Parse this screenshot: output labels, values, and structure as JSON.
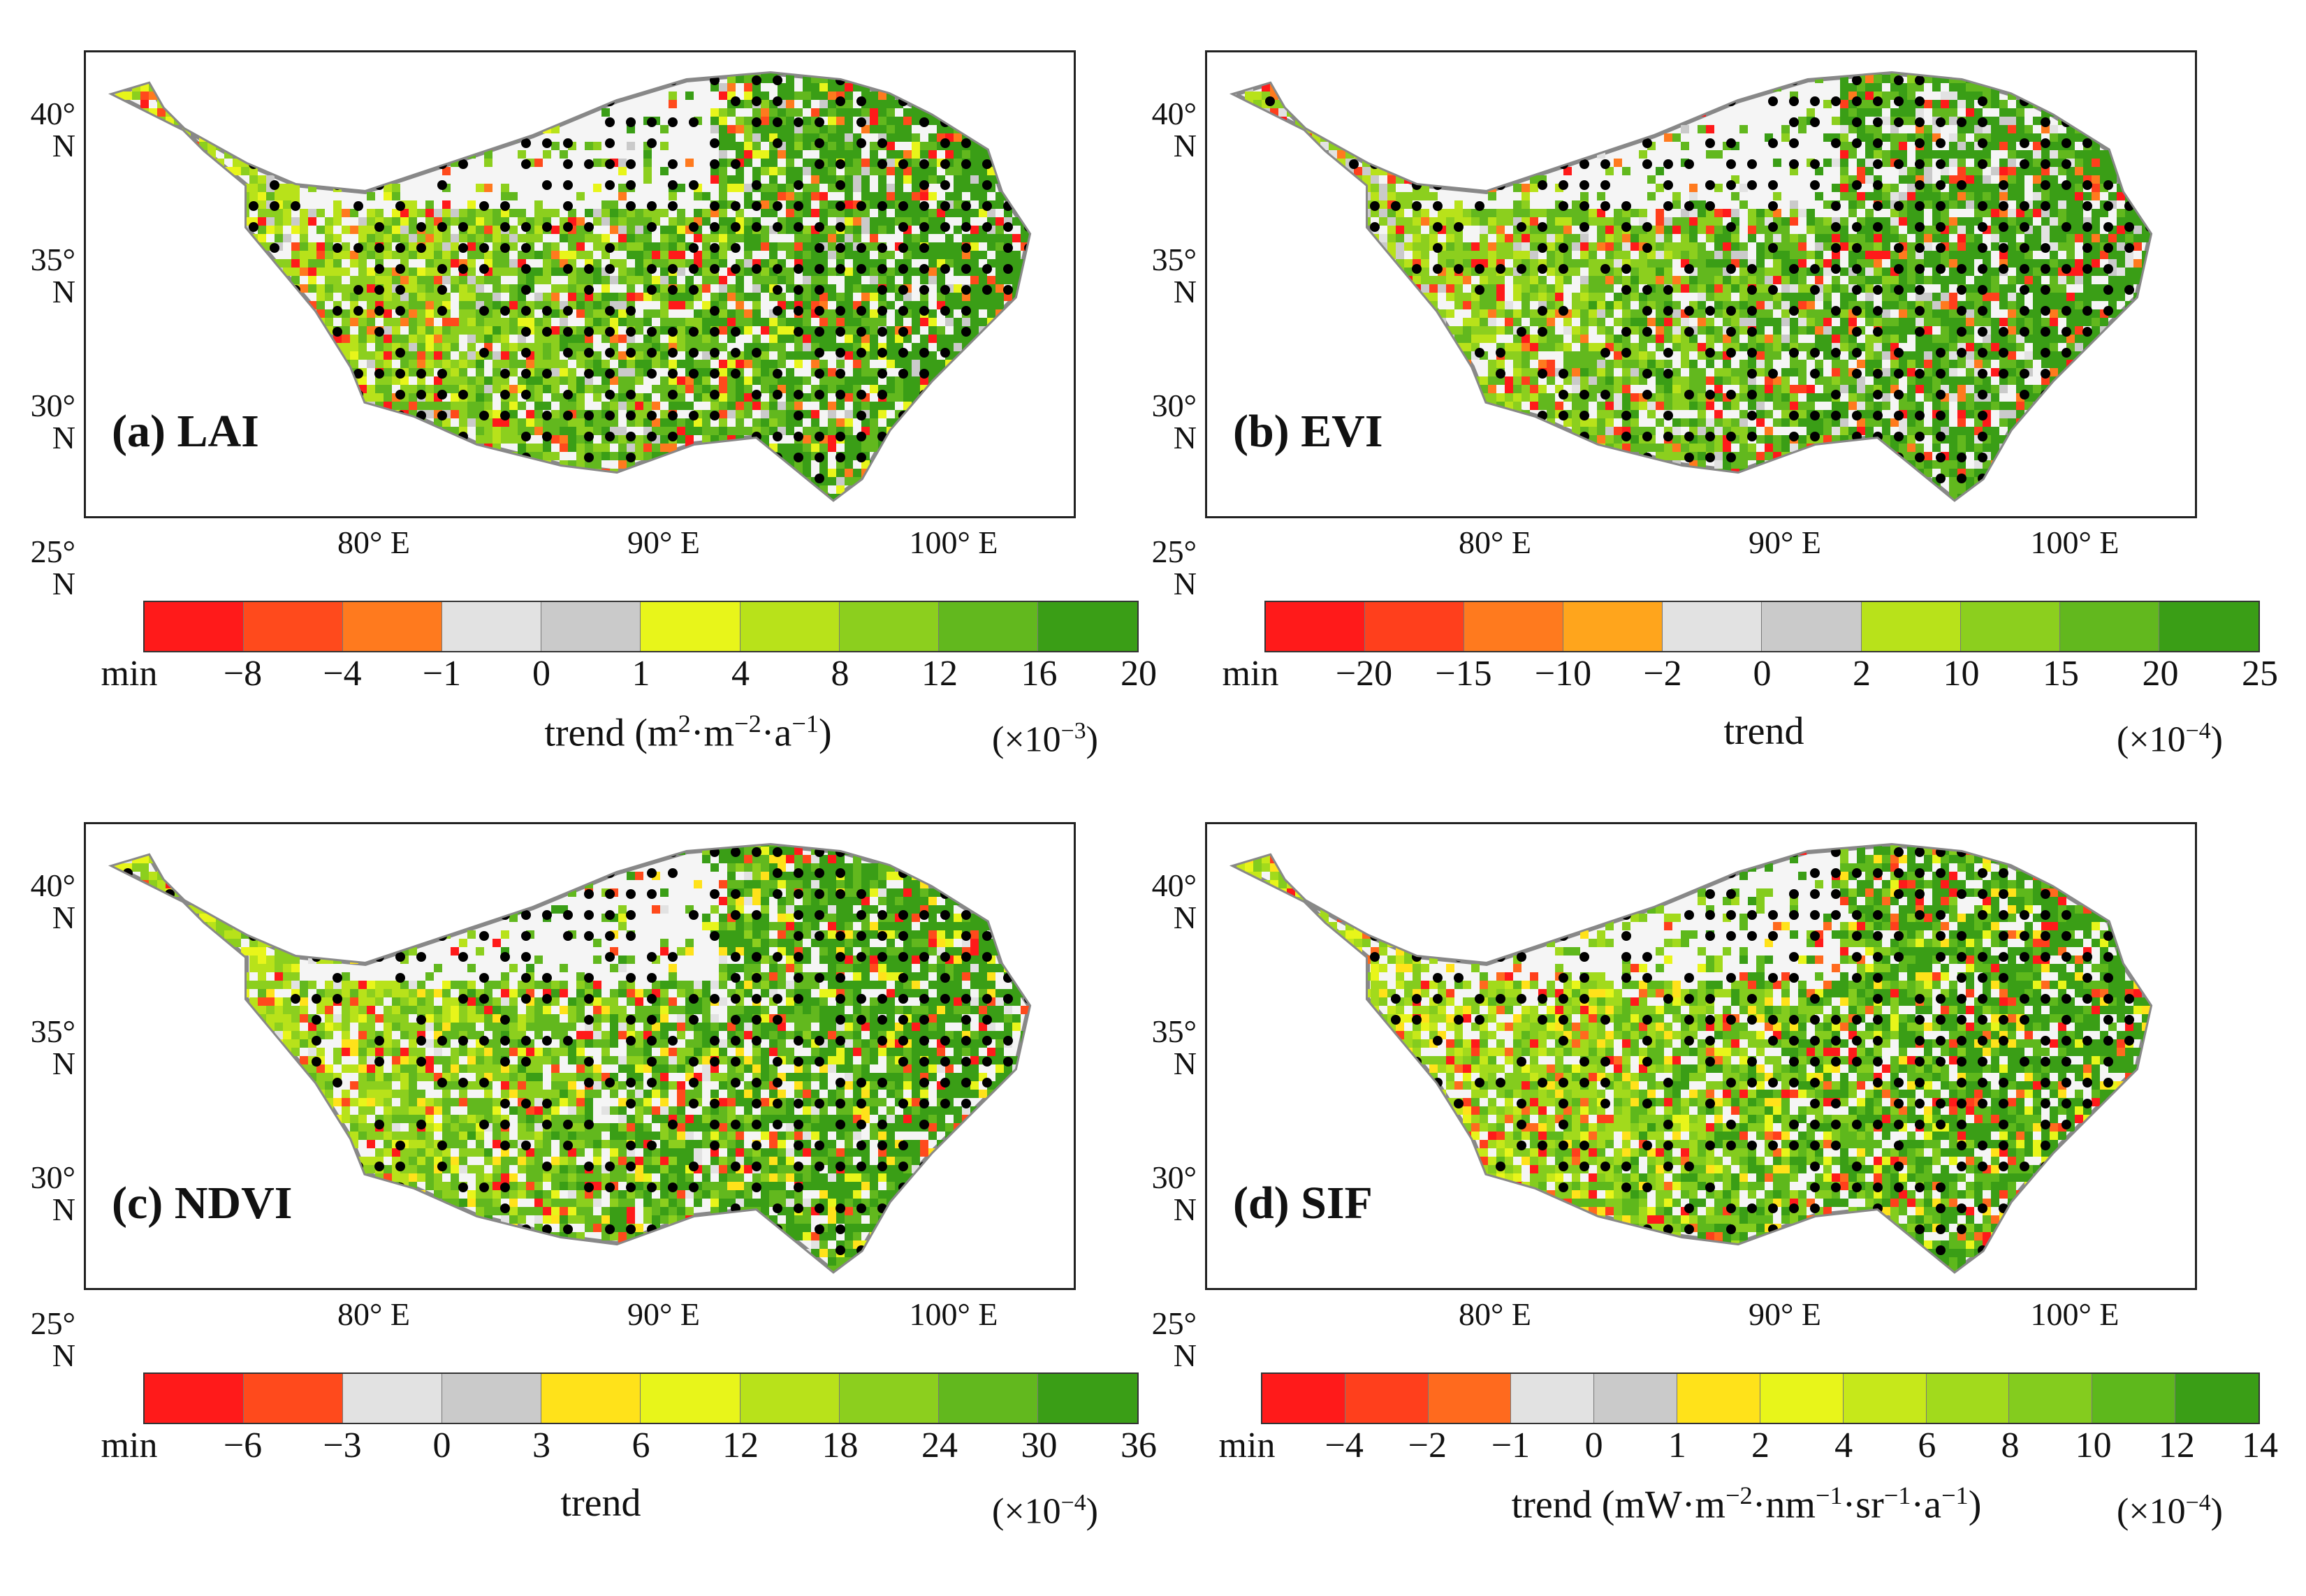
{
  "panels": [
    {
      "id": "a",
      "label": "(a) LAI",
      "title_text": "trend (m",
      "title_sup1": "2",
      "title_mid1": "·m",
      "title_sup2": "−2",
      "title_mid2": "·a",
      "title_sup3": "−1",
      "title_end": ")",
      "scale_base": "(×10",
      "scale_exp": "−3",
      "scale_end": ")",
      "colors": [
        "#ff1a1a",
        "#ff4a1c",
        "#ff7a1e",
        "#e2e2e2",
        "#cacaca",
        "#e8f51a",
        "#b8e21a",
        "#8ccf1e",
        "#62b81e",
        "#3a9e16"
      ],
      "ticks": [
        "min",
        "−8",
        "−4",
        "−1",
        "0",
        "1",
        "4",
        "8",
        "12",
        "16",
        "20"
      ]
    },
    {
      "id": "b",
      "label": "(b) EVI",
      "title_text": "trend",
      "scale_base": "(×10",
      "scale_exp": "−4",
      "scale_end": ")",
      "colors": [
        "#ff1a1a",
        "#ff3f1c",
        "#ff7a1e",
        "#ffa51c",
        "#e2e2e2",
        "#cacaca",
        "#b8e21a",
        "#8ccf1e",
        "#62b81e",
        "#3a9e16"
      ],
      "ticks": [
        "min",
        "−20",
        "−15",
        "−10",
        "−2",
        "0",
        "2",
        "10",
        "15",
        "20",
        "25"
      ]
    },
    {
      "id": "c",
      "label": "(c) NDVI",
      "title_text": "trend",
      "scale_base": "(×10",
      "scale_exp": "−4",
      "scale_end": ")",
      "colors": [
        "#ff1a1a",
        "#ff4a1c",
        "#e2e2e2",
        "#cacaca",
        "#ffe21a",
        "#e8f51a",
        "#b8e21a",
        "#8ccf1e",
        "#62b81e",
        "#3a9e16"
      ],
      "ticks": [
        "min",
        "−6",
        "−3",
        "0",
        "3",
        "6",
        "12",
        "18",
        "24",
        "30",
        "36"
      ]
    },
    {
      "id": "d",
      "label": "(d) SIF",
      "title_text": "trend (mW·m",
      "title_sup1": "−2",
      "title_mid1": "·nm",
      "title_sup2": "−1",
      "title_mid2": "·sr",
      "title_sup3": "−1",
      "title_mid3": "·a",
      "title_sup4": "−1",
      "title_end": ")",
      "scale_base": "(×10",
      "scale_exp": "−4",
      "scale_end": ")",
      "colors": [
        "#ff1a1a",
        "#ff3f1c",
        "#ff6a1e",
        "#e2e2e2",
        "#cacaca",
        "#ffe21a",
        "#e8f51a",
        "#c6e81a",
        "#a2da1c",
        "#84cc1e",
        "#5eb81c",
        "#3a9e16"
      ],
      "ticks": [
        "min",
        "−4",
        "−2",
        "−1",
        "0",
        "1",
        "2",
        "4",
        "6",
        "8",
        "10",
        "12",
        "14"
      ]
    }
  ],
  "lat_labels": [
    "40° N",
    "35° N",
    "30° N",
    "25° N"
  ],
  "lon_labels": [
    "80° E",
    "90° E",
    "100° E"
  ],
  "colors": {
    "outline": "#888888",
    "frame": "#222222",
    "dot": "#000000"
  }
}
